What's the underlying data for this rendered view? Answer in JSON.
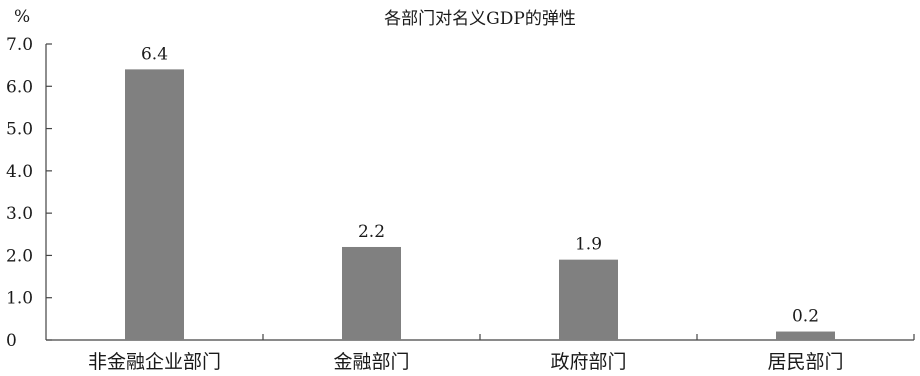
{
  "chart_data": {
    "type": "bar",
    "title": "各部门对名义GDP的弹性",
    "ylabel": "%",
    "xlabel": "",
    "categories": [
      "非金融企业部门",
      "金融部门",
      "政府部门",
      "居民部门"
    ],
    "values": [
      6.4,
      2.2,
      1.9,
      0.2
    ],
    "value_labels": [
      "6.4",
      "2.2",
      "1.9",
      "0.2"
    ],
    "ylim": [
      0,
      7.0
    ],
    "yticks": [
      0,
      1.0,
      2.0,
      3.0,
      4.0,
      5.0,
      6.0,
      7.0
    ],
    "ytick_labels": [
      "0",
      "1.0",
      "2.0",
      "3.0",
      "4.0",
      "5.0",
      "6.0",
      "7.0"
    ],
    "grid": false,
    "legend": "none",
    "bar_color": "#808080"
  }
}
